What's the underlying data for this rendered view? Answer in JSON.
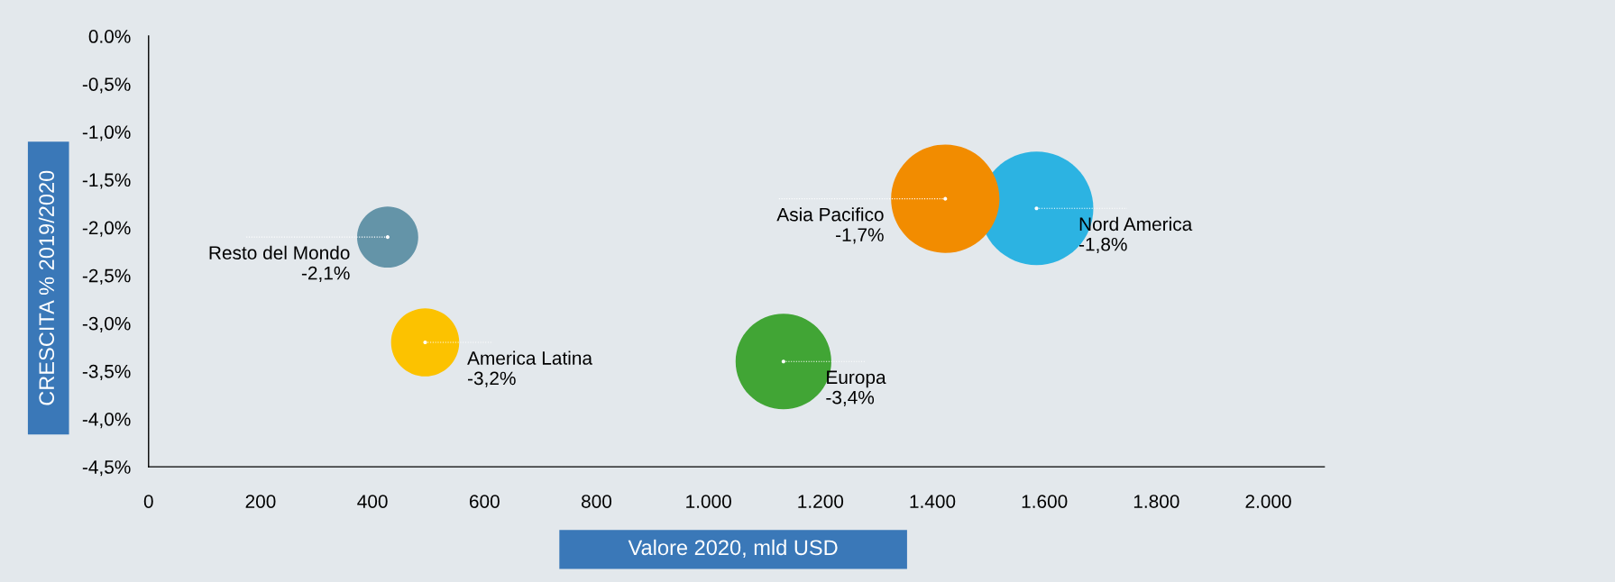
{
  "chart_data": {
    "type": "bubble",
    "xlabel": "Valore 2020, mld USD",
    "ylabel": "CRESCITA % 2019/2020",
    "xlim": [
      0,
      2100
    ],
    "xticks": [
      0,
      200,
      400,
      600,
      800,
      {
        "value": 1000,
        "label": "1.000"
      },
      {
        "value": 1200,
        "label": "1.200"
      },
      {
        "value": 1400,
        "label": "1.400"
      },
      {
        "value": 1600,
        "label": "1.600"
      },
      {
        "value": 1800,
        "label": "1.800"
      },
      {
        "value": 2000,
        "label": "2.000"
      }
    ],
    "ylim": [
      -4.5,
      0
    ],
    "yticks": [
      {
        "value": 0,
        "label": "0.0%"
      },
      {
        "value": -0.5,
        "label": "-0,5%"
      },
      {
        "value": -1.0,
        "label": "-1,0%"
      },
      {
        "value": -1.5,
        "label": "-1,5%"
      },
      {
        "value": -2.0,
        "label": "-2,0%"
      },
      {
        "value": -2.5,
        "label": "-2,5%"
      },
      {
        "value": -3.0,
        "label": "-3,0%"
      },
      {
        "value": -3.5,
        "label": "-3,5%"
      },
      {
        "value": -4.0,
        "label": "-4,0%"
      },
      {
        "value": -4.5,
        "label": "-4,5%"
      }
    ],
    "grid": false,
    "legend": false,
    "series": [
      {
        "name": "Resto del Mondo",
        "color": "#6494a8",
        "x": [
          427
        ],
        "values": [
          -2.1
        ],
        "sizes": [
          0.29
        ],
        "value_labels": [
          "-2,1%"
        ]
      },
      {
        "name": "America Latina",
        "color": "#fcc200",
        "x": [
          494
        ],
        "values": [
          -3.2
        ],
        "sizes": [
          0.36
        ],
        "value_labels": [
          "-3,2%"
        ]
      },
      {
        "name": "Europa",
        "color": "#41a535",
        "x": [
          1134
        ],
        "values": [
          -3.4
        ],
        "sizes": [
          0.71
        ],
        "value_labels": [
          "-3,4%"
        ]
      },
      {
        "name": "Nord America",
        "color": "#2cb3e2",
        "x": [
          1586
        ],
        "values": [
          -1.8
        ],
        "sizes": [
          1.0
        ],
        "value_labels": [
          "-1,8%"
        ]
      },
      {
        "name": "Asia Pacifico",
        "color": "#f28c00",
        "x": [
          1423
        ],
        "values": [
          -1.7
        ],
        "sizes": [
          0.91
        ],
        "value_labels": [
          "-1,7%"
        ]
      }
    ]
  }
}
